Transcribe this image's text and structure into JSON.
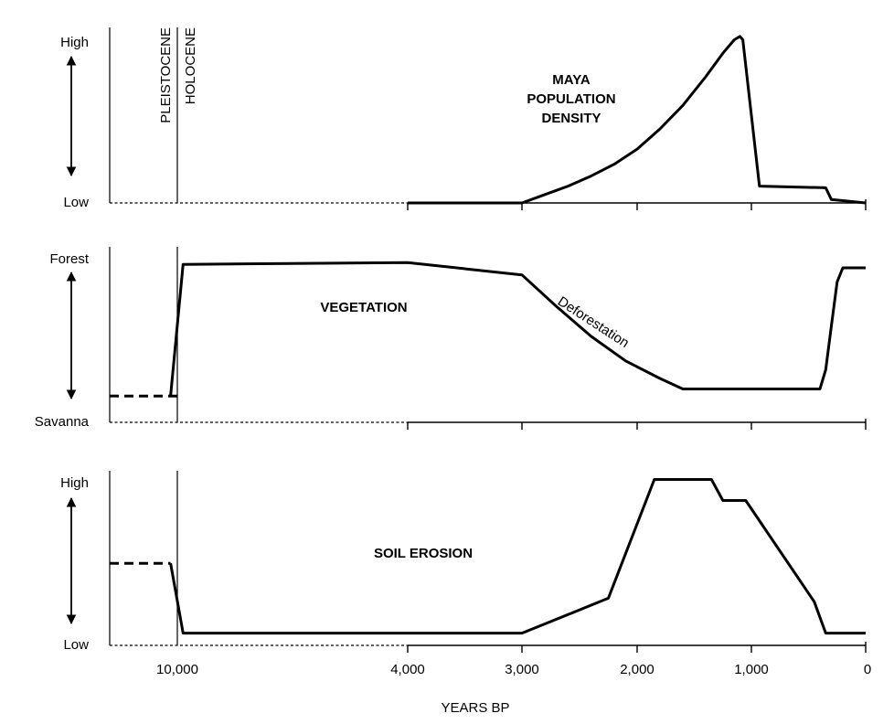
{
  "chart_data": {
    "type": "line",
    "xlabel": "YEARS BP",
    "x_ticks": [
      10000,
      4000,
      3000,
      2000,
      1000,
      0
    ],
    "x_tick_labels": [
      "10,000",
      "4,000",
      "3,000",
      "2,000",
      "1,000",
      "0"
    ],
    "xlim": [
      11000,
      0
    ],
    "epoch_boundary": 10000,
    "epoch_labels": [
      "PLEISTOCENE",
      "HOLOCENE"
    ],
    "panels": [
      {
        "title_lines": [
          "MAYA",
          "POPULATION",
          "DENSITY"
        ],
        "y_high_label": "High",
        "y_low_label": "Low",
        "ylim": [
          0,
          100
        ],
        "series": [
          {
            "style": "solid",
            "x": [
              4000,
              3000,
              2800,
              2600,
              2400,
              2200,
              2000,
              1800,
              1600,
              1400,
              1250,
              1150,
              1100,
              1075,
              930,
              350,
              300,
              0
            ],
            "y": [
              0,
              0,
              5,
              10,
              16,
              23,
              32,
              44,
              58,
              75,
              89,
              97,
              99,
              97,
              10,
              9,
              2,
              0
            ]
          }
        ],
        "baseline": {
          "style": "dotted",
          "x": [
            11000,
            4000
          ],
          "y": [
            0,
            0
          ]
        }
      },
      {
        "title_lines": [
          "VEGETATION"
        ],
        "y_high_label": "Forest",
        "y_low_label": "Savanna",
        "ylim": [
          0,
          100
        ],
        "annotations": [
          {
            "text": "Deforestation",
            "x": 2400,
            "y": 55
          }
        ],
        "series": [
          {
            "style": "dashed",
            "x": [
              11000,
              10000
            ],
            "y": [
              15,
              15
            ]
          },
          {
            "style": "solid",
            "x": [
              10100,
              9850,
              4000,
              3000,
              2700,
              2400,
              2100,
              1800,
              1600,
              400,
              350,
              300,
              250,
              200,
              0
            ],
            "y": [
              15,
              90,
              91,
              84,
              66,
              49,
              35,
              25,
              19,
              19,
              30,
              55,
              80,
              88,
              88
            ]
          }
        ],
        "baseline": {
          "style": "dotted",
          "x": [
            11000,
            4000
          ],
          "y": [
            0,
            0
          ]
        }
      },
      {
        "title_lines": [
          "SOIL EROSION"
        ],
        "y_high_label": "High",
        "y_low_label": "Low",
        "ylim": [
          0,
          100
        ],
        "series": [
          {
            "style": "dashed",
            "x": [
              11000,
              10100
            ],
            "y": [
              47,
              47
            ]
          },
          {
            "style": "solid",
            "x": [
              10100,
              9850,
              3000,
              2250,
              1850,
              1350,
              1250,
              1050,
              450,
              350,
              0
            ],
            "y": [
              47,
              7,
              7,
              27,
              95,
              95,
              83,
              83,
              25,
              7,
              7
            ]
          }
        ],
        "baseline": {
          "style": "dotted",
          "x": [
            11000,
            4000
          ],
          "y": [
            0,
            0
          ]
        }
      }
    ]
  }
}
